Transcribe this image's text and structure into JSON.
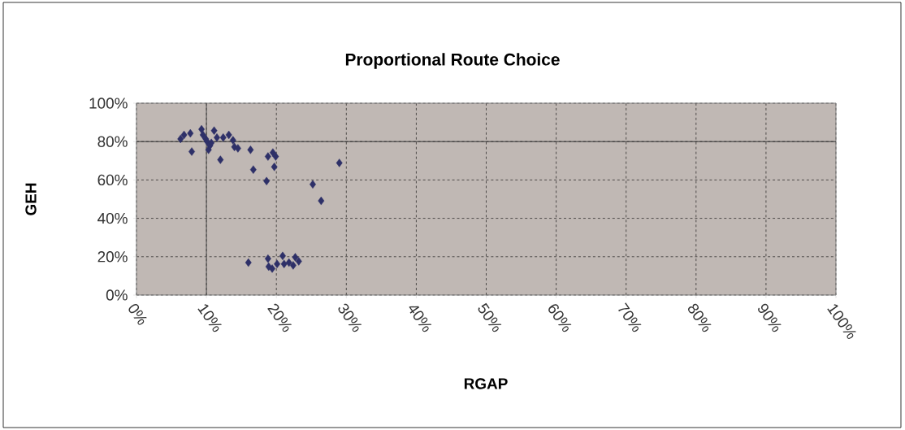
{
  "chart_data": {
    "type": "scatter",
    "title": "Proportional Route Choice",
    "xlabel": "RGAP",
    "ylabel": "GEH",
    "x": [
      6.3,
      6.8,
      7.7,
      7.9,
      9.3,
      9.5,
      9.9,
      10.1,
      10.3,
      10.5,
      10.7,
      11.1,
      11.5,
      12.0,
      12.4,
      13.2,
      13.8,
      14.0,
      14.5,
      16.3,
      16.7,
      18.6,
      18.8,
      19.5,
      19.9,
      19.7,
      29.0,
      25.2,
      26.4,
      16.0,
      18.8,
      18.9,
      19.4,
      20.1,
      20.9,
      21.1,
      21.8,
      22.4,
      22.7,
      23.2
    ],
    "series": [
      {
        "color": "#2e3068",
        "values": [
          81.4,
          83.5,
          84.3,
          74.8,
          86.4,
          83.5,
          81.4,
          80,
          75.7,
          77.9,
          79.3,
          85.7,
          82.1,
          70.5,
          82.1,
          83.5,
          80.7,
          77.2,
          76.5,
          75.7,
          65.4,
          59.4,
          72.2,
          74.3,
          72.2,
          66.8,
          68.9,
          57.7,
          49.1,
          16.9,
          19.0,
          14.8,
          13.8,
          16.2,
          20.4,
          16.2,
          16.9,
          15.5,
          19.7,
          17.6
        ]
      }
    ],
    "marker": "diamond",
    "grid": true,
    "xlim": [
      0,
      100
    ],
    "ylim": [
      0,
      100
    ],
    "xticks": [
      {
        "value": 0,
        "label": "0%"
      },
      {
        "value": 10,
        "label": "10%"
      },
      {
        "value": 20,
        "label": "20%"
      },
      {
        "value": 30,
        "label": "30%"
      },
      {
        "value": 40,
        "label": "40%"
      },
      {
        "value": 50,
        "label": "50%"
      },
      {
        "value": 60,
        "label": "60%"
      },
      {
        "value": 70,
        "label": "70%"
      },
      {
        "value": 80,
        "label": "80%"
      },
      {
        "value": 90,
        "label": "90%"
      },
      {
        "value": 100,
        "label": "100%"
      }
    ],
    "yticks": [
      {
        "value": 0,
        "label": "0%"
      },
      {
        "value": 20,
        "label": "20%"
      },
      {
        "value": 40,
        "label": "40%"
      },
      {
        "value": 60,
        "label": "60%"
      },
      {
        "value": 80,
        "label": "80%"
      },
      {
        "value": 100,
        "label": "100%"
      }
    ],
    "ref_lines": [
      {
        "axis": "x",
        "value": 10,
        "color": "#4a4a4a",
        "line_style": "solid"
      },
      {
        "axis": "y",
        "value": 80,
        "color": "#333333",
        "line_style": "solid"
      }
    ]
  }
}
